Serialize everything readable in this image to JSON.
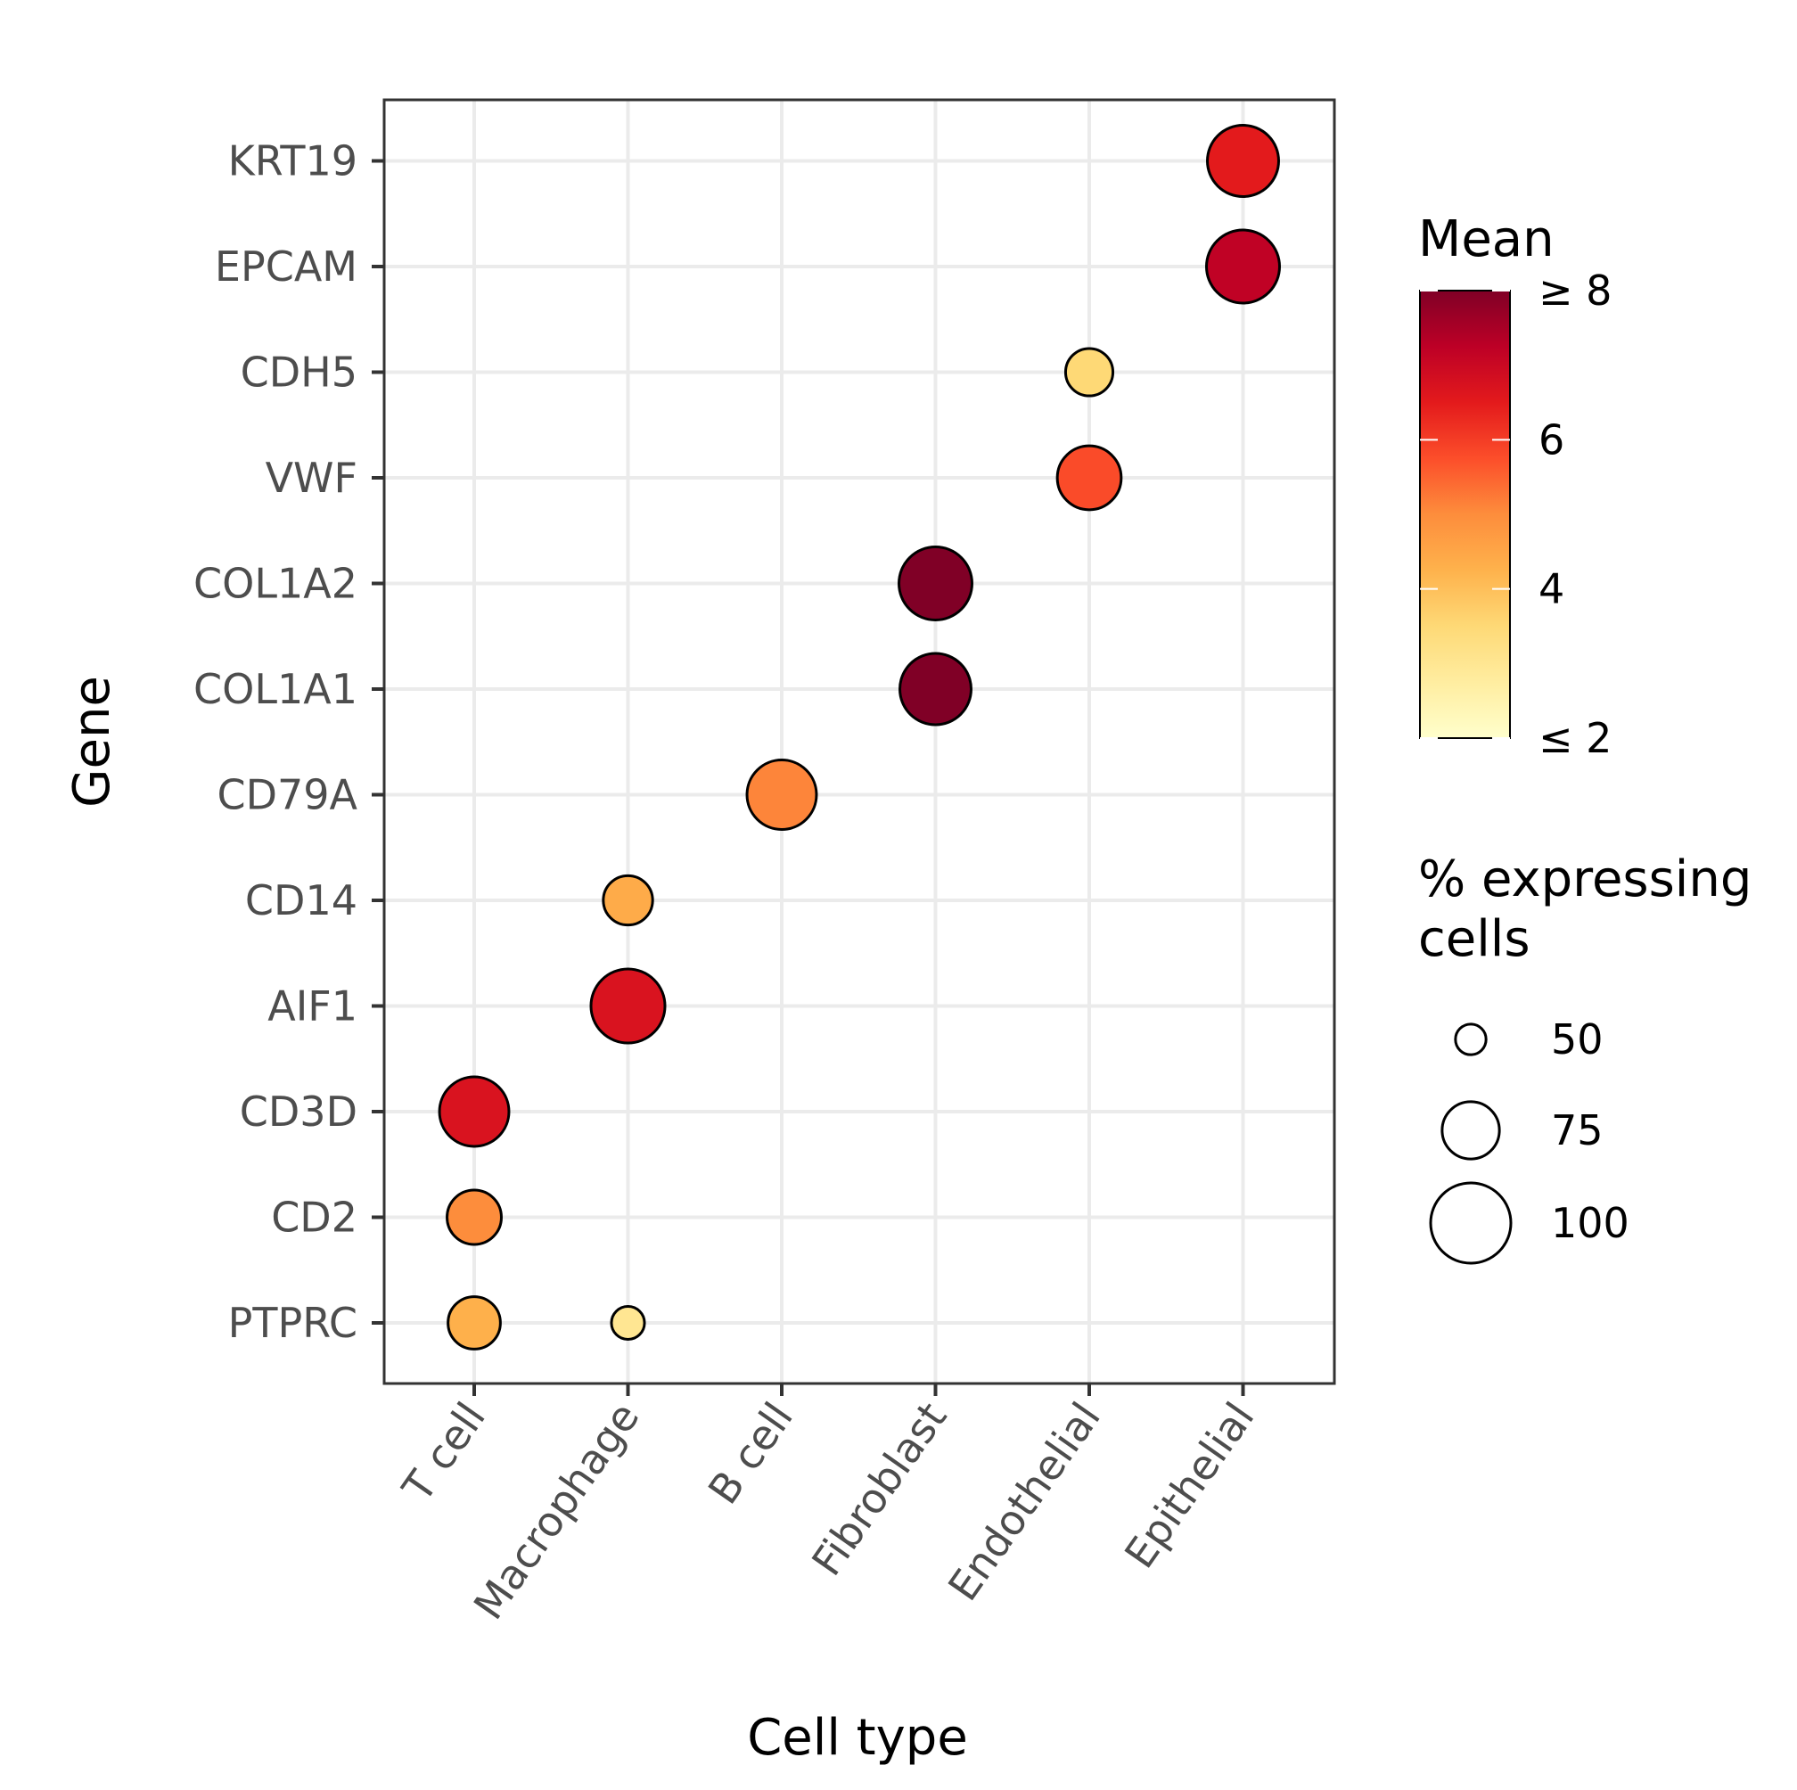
{
  "chart_data": {
    "type": "dotplot",
    "xlabel": "Cell type",
    "ylabel": "Gene",
    "x_categories": [
      "T cell",
      "Macrophage",
      "B cell",
      "Fibroblast",
      "Endothelial",
      "Epithelial"
    ],
    "y_categories": [
      "PTPRC",
      "CD2",
      "CD3D",
      "AIF1",
      "CD14",
      "CD79A",
      "COL1A1",
      "COL1A2",
      "VWF",
      "CDH5",
      "EPCAM",
      "KRT19"
    ],
    "points": [
      {
        "cell_type": "T cell",
        "gene": "PTPRC",
        "mean": 4.3,
        "pct": 70
      },
      {
        "cell_type": "Macrophage",
        "gene": "PTPRC",
        "mean": 3.0,
        "pct": 52
      },
      {
        "cell_type": "T cell",
        "gene": "CD2",
        "mean": 5.0,
        "pct": 72
      },
      {
        "cell_type": "T cell",
        "gene": "CD3D",
        "mean": 6.7,
        "pct": 88
      },
      {
        "cell_type": "Macrophage",
        "gene": "AIF1",
        "mean": 6.7,
        "pct": 93
      },
      {
        "cell_type": "Macrophage",
        "gene": "CD14",
        "mean": 4.4,
        "pct": 67
      },
      {
        "cell_type": "B cell",
        "gene": "CD79A",
        "mean": 5.1,
        "pct": 88
      },
      {
        "cell_type": "Fibroblast",
        "gene": "COL1A1",
        "mean": 8.0,
        "pct": 90
      },
      {
        "cell_type": "Fibroblast",
        "gene": "COL1A2",
        "mean": 8.0,
        "pct": 92
      },
      {
        "cell_type": "Endothelial",
        "gene": "VWF",
        "mean": 5.8,
        "pct": 82
      },
      {
        "cell_type": "Endothelial",
        "gene": "CDH5",
        "mean": 3.5,
        "pct": 65
      },
      {
        "cell_type": "Epithelial",
        "gene": "EPCAM",
        "mean": 7.2,
        "pct": 92
      },
      {
        "cell_type": "Epithelial",
        "gene": "KRT19",
        "mean": 6.5,
        "pct": 90
      }
    ],
    "color_legend": {
      "title": "Mean",
      "min": 2,
      "max": 8,
      "tick_values": [
        8,
        6,
        4,
        2
      ],
      "tick_labels": [
        "≥ 8",
        "6",
        "4",
        "≤ 2"
      ],
      "colors": [
        "#ffffcc",
        "#ffeda0",
        "#fed976",
        "#feb24c",
        "#fd8d3c",
        "#fc4e2a",
        "#e31a1c",
        "#bd0026",
        "#800026"
      ]
    },
    "size_legend": {
      "title_line1": "% expressing",
      "title_line2": "cells",
      "values": [
        50,
        75,
        100
      ],
      "labels": [
        "50",
        "75",
        "100"
      ]
    },
    "grid": true
  }
}
